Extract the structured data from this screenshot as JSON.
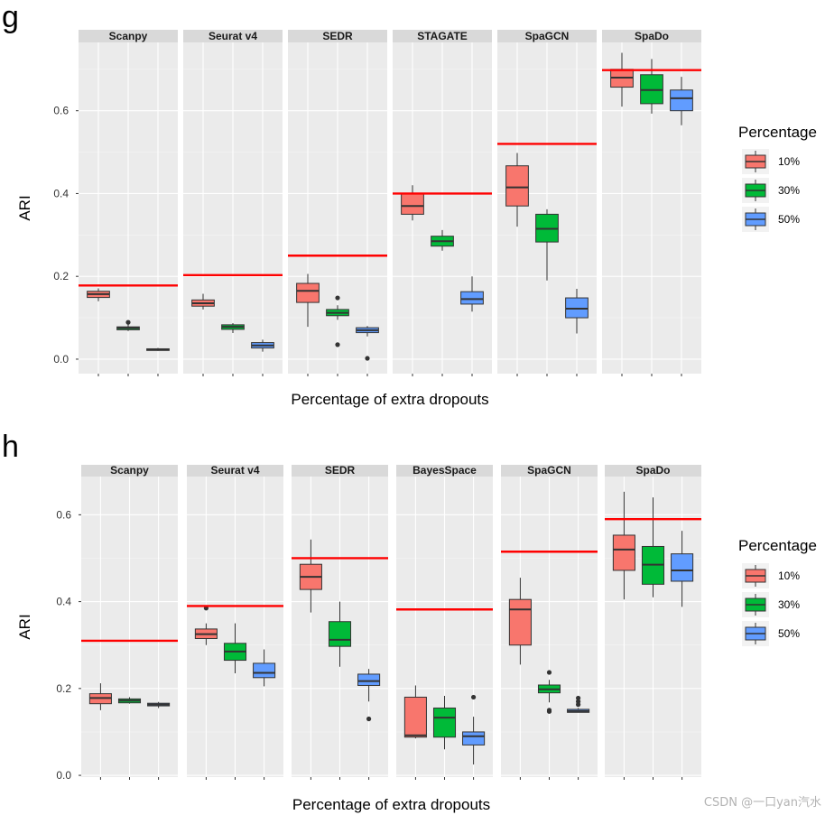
{
  "watermark": "CSDN @一口yan汽水",
  "chart_data": [
    {
      "type": "box",
      "panel_label": "g",
      "xlabel": "Percentage of extra dropouts",
      "ylabel": "ARI",
      "ylim": [
        -0.035,
        0.765
      ],
      "yticks": [
        0.0,
        0.2,
        0.4,
        0.6
      ],
      "ytick_labels": [
        "0.0",
        "0.2",
        "0.4",
        "0.6"
      ],
      "series_names": [
        "10%",
        "30%",
        "50%"
      ],
      "colors": [
        "#F8766D",
        "#00BA38",
        "#619CFF"
      ],
      "reference_line_color": "#FF0000",
      "legend": {
        "title": "Percentage",
        "entries": [
          "10%",
          "30%",
          "50%"
        ],
        "position": "right"
      },
      "facets": [
        {
          "name": "Scanpy",
          "reference": 0.178,
          "boxes": [
            {
              "whislo": 0.14,
              "q1": 0.149,
              "median": 0.157,
              "q3": 0.164,
              "whishi": 0.171,
              "outliers": []
            },
            {
              "whislo": 0.068,
              "q1": 0.071,
              "median": 0.075,
              "q3": 0.078,
              "whishi": 0.088,
              "outliers": [
                0.089
              ]
            },
            {
              "whislo": 0.02,
              "q1": 0.021,
              "median": 0.023,
              "q3": 0.025,
              "whishi": 0.027,
              "outliers": []
            }
          ]
        },
        {
          "name": "Seurat v4",
          "reference": 0.203,
          "boxes": [
            {
              "whislo": 0.12,
              "q1": 0.128,
              "median": 0.135,
              "q3": 0.143,
              "whishi": 0.158,
              "outliers": []
            },
            {
              "whislo": 0.063,
              "q1": 0.072,
              "median": 0.078,
              "q3": 0.083,
              "whishi": 0.087,
              "outliers": []
            },
            {
              "whislo": 0.018,
              "q1": 0.027,
              "median": 0.033,
              "q3": 0.04,
              "whishi": 0.047,
              "outliers": []
            }
          ]
        },
        {
          "name": "SEDR",
          "reference": 0.25,
          "boxes": [
            {
              "whislo": 0.078,
              "q1": 0.137,
              "median": 0.165,
              "q3": 0.183,
              "whishi": 0.206,
              "outliers": []
            },
            {
              "whislo": 0.095,
              "q1": 0.105,
              "median": 0.112,
              "q3": 0.12,
              "whishi": 0.13,
              "outliers": [
                0.148,
                0.035
              ]
            },
            {
              "whislo": 0.055,
              "q1": 0.064,
              "median": 0.07,
              "q3": 0.076,
              "whishi": 0.08,
              "outliers": [
                0.002
              ]
            }
          ]
        },
        {
          "name": "STAGATE",
          "reference": 0.4,
          "boxes": [
            {
              "whislo": 0.335,
              "q1": 0.35,
              "median": 0.37,
              "q3": 0.4,
              "whishi": 0.42,
              "outliers": []
            },
            {
              "whislo": 0.262,
              "q1": 0.273,
              "median": 0.285,
              "q3": 0.297,
              "whishi": 0.312,
              "outliers": []
            },
            {
              "whislo": 0.115,
              "q1": 0.133,
              "median": 0.145,
              "q3": 0.163,
              "whishi": 0.2,
              "outliers": []
            }
          ]
        },
        {
          "name": "SpaGCN",
          "reference": 0.52,
          "boxes": [
            {
              "whislo": 0.32,
              "q1": 0.37,
              "median": 0.415,
              "q3": 0.467,
              "whishi": 0.498,
              "outliers": []
            },
            {
              "whislo": 0.19,
              "q1": 0.283,
              "median": 0.315,
              "q3": 0.35,
              "whishi": 0.362,
              "outliers": []
            },
            {
              "whislo": 0.062,
              "q1": 0.1,
              "median": 0.122,
              "q3": 0.148,
              "whishi": 0.17,
              "outliers": []
            }
          ]
        },
        {
          "name": "SpaDo",
          "reference": 0.698,
          "boxes": [
            {
              "whislo": 0.61,
              "q1": 0.657,
              "median": 0.68,
              "q3": 0.7,
              "whishi": 0.74,
              "outliers": []
            },
            {
              "whislo": 0.593,
              "q1": 0.617,
              "median": 0.65,
              "q3": 0.687,
              "whishi": 0.725,
              "outliers": []
            },
            {
              "whislo": 0.565,
              "q1": 0.6,
              "median": 0.63,
              "q3": 0.65,
              "whishi": 0.682,
              "outliers": []
            }
          ]
        }
      ]
    },
    {
      "type": "box",
      "panel_label": "h",
      "xlabel": "Percentage of extra dropouts",
      "ylabel": "ARI",
      "ylim": [
        -0.004,
        0.688
      ],
      "yticks": [
        0.0,
        0.2,
        0.4,
        0.6
      ],
      "ytick_labels": [
        "0.0",
        "0.2",
        "0.4",
        "0.6"
      ],
      "series_names": [
        "10%",
        "30%",
        "50%"
      ],
      "colors": [
        "#F8766D",
        "#00BA38",
        "#619CFF"
      ],
      "reference_line_color": "#FF0000",
      "legend": {
        "title": "Percentage",
        "entries": [
          "10%",
          "30%",
          "50%"
        ],
        "position": "right"
      },
      "facets": [
        {
          "name": "Scanpy",
          "reference": 0.31,
          "boxes": [
            {
              "whislo": 0.15,
              "q1": 0.165,
              "median": 0.178,
              "q3": 0.188,
              "whishi": 0.212,
              "outliers": []
            },
            {
              "whislo": 0.165,
              "q1": 0.167,
              "median": 0.172,
              "q3": 0.176,
              "whishi": 0.18,
              "outliers": []
            },
            {
              "whislo": 0.155,
              "q1": 0.16,
              "median": 0.163,
              "q3": 0.166,
              "whishi": 0.169,
              "outliers": []
            }
          ]
        },
        {
          "name": "Seurat v4",
          "reference": 0.39,
          "boxes": [
            {
              "whislo": 0.3,
              "q1": 0.315,
              "median": 0.325,
              "q3": 0.337,
              "whishi": 0.35,
              "outliers": [
                0.385
              ]
            },
            {
              "whislo": 0.235,
              "q1": 0.265,
              "median": 0.285,
              "q3": 0.304,
              "whishi": 0.35,
              "outliers": []
            },
            {
              "whislo": 0.205,
              "q1": 0.225,
              "median": 0.236,
              "q3": 0.258,
              "whishi": 0.29,
              "outliers": []
            }
          ]
        },
        {
          "name": "SEDR",
          "reference": 0.5,
          "boxes": [
            {
              "whislo": 0.375,
              "q1": 0.428,
              "median": 0.457,
              "q3": 0.486,
              "whishi": 0.543,
              "outliers": []
            },
            {
              "whislo": 0.25,
              "q1": 0.297,
              "median": 0.312,
              "q3": 0.354,
              "whishi": 0.4,
              "outliers": []
            },
            {
              "whislo": 0.17,
              "q1": 0.207,
              "median": 0.217,
              "q3": 0.233,
              "whishi": 0.245,
              "outliers": [
                0.13
              ]
            }
          ]
        },
        {
          "name": "BayesSpace",
          "reference": 0.382,
          "boxes": [
            {
              "whislo": 0.085,
              "q1": 0.088,
              "median": 0.092,
              "q3": 0.18,
              "whishi": 0.207,
              "outliers": []
            },
            {
              "whislo": 0.06,
              "q1": 0.088,
              "median": 0.133,
              "q3": 0.155,
              "whishi": 0.183,
              "outliers": []
            },
            {
              "whislo": 0.025,
              "q1": 0.07,
              "median": 0.09,
              "q3": 0.1,
              "whishi": 0.135,
              "outliers": [
                0.18
              ]
            }
          ]
        },
        {
          "name": "SpaGCN",
          "reference": 0.515,
          "boxes": [
            {
              "whislo": 0.255,
              "q1": 0.3,
              "median": 0.382,
              "q3": 0.405,
              "whishi": 0.455,
              "outliers": []
            },
            {
              "whislo": 0.168,
              "q1": 0.19,
              "median": 0.198,
              "q3": 0.208,
              "whishi": 0.22,
              "outliers": [
                0.237,
                0.15,
                0.147
              ]
            },
            {
              "whislo": 0.145,
              "q1": 0.145,
              "median": 0.148,
              "q3": 0.152,
              "whishi": 0.155,
              "outliers": [
                0.178,
                0.17,
                0.163
              ]
            }
          ]
        },
        {
          "name": "SpaDo",
          "reference": 0.59,
          "boxes": [
            {
              "whislo": 0.405,
              "q1": 0.472,
              "median": 0.52,
              "q3": 0.553,
              "whishi": 0.653,
              "outliers": []
            },
            {
              "whislo": 0.41,
              "q1": 0.44,
              "median": 0.485,
              "q3": 0.527,
              "whishi": 0.64,
              "outliers": []
            },
            {
              "whislo": 0.388,
              "q1": 0.447,
              "median": 0.472,
              "q3": 0.51,
              "whishi": 0.563,
              "outliers": []
            }
          ]
        }
      ]
    }
  ]
}
